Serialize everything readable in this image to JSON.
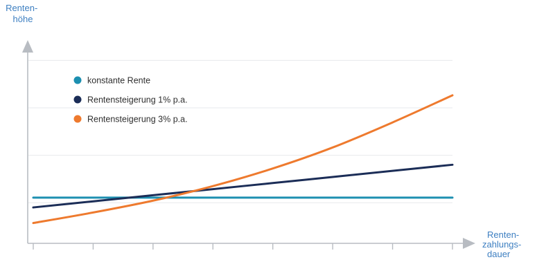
{
  "chart_data": {
    "type": "line",
    "title": "",
    "ylabel_lines": [
      "Renten-",
      "höhe"
    ],
    "xlabel_lines": [
      "Renten-",
      "zahlungs-",
      "dauer"
    ],
    "x": [
      0,
      1,
      2,
      3,
      4,
      5,
      6,
      7
    ],
    "xlim": [
      0,
      7
    ],
    "ylim": [
      0,
      6
    ],
    "grid": true,
    "legend_position": "top-left",
    "series": [
      {
        "name": "konstante Rente",
        "color": "#1c8fb0",
        "values": [
          1.35,
          1.35,
          1.35,
          1.35,
          1.35,
          1.35,
          1.35,
          1.35
        ]
      },
      {
        "name": "Rentensteigerung 1% p.a.",
        "color": "#1b2d57",
        "values": [
          1.06,
          1.24,
          1.42,
          1.6,
          1.78,
          1.96,
          2.14,
          2.32
        ]
      },
      {
        "name": "Rentensteigerung 3% p.a.",
        "color": "#ee7a2e",
        "values": [
          0.6,
          0.91,
          1.26,
          1.69,
          2.21,
          2.83,
          3.57,
          4.37
        ]
      }
    ]
  },
  "colors": {
    "axis": "#b8bcc2",
    "grid": "#e7e9ec",
    "axis_label": "#3d7fc1"
  }
}
